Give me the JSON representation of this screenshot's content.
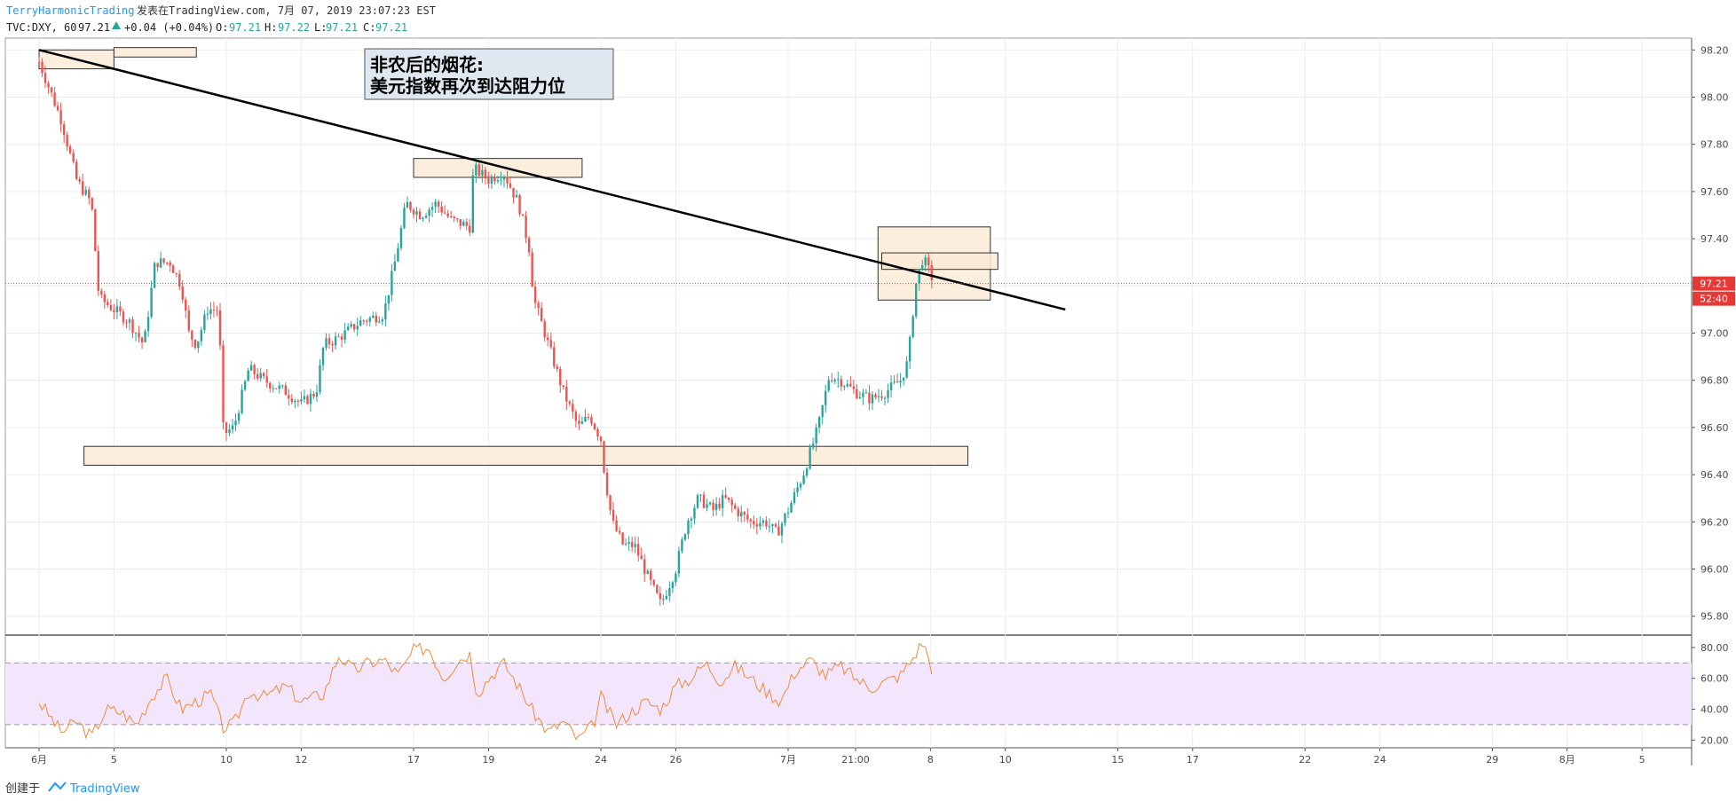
{
  "header": {
    "author": "TerryHarmonicTrading",
    "published": "发表在TradingView.com, 7月 07, 2019 23:07:23 EST",
    "symbol": "TVC:DXY, 60",
    "last": "97.21",
    "change": "+0.04 (+0.04%)",
    "o_label": "O:",
    "o_value": "97.21",
    "h_label": "H:",
    "h_value": "97.22",
    "l_label": "L:",
    "l_value": "97.21",
    "c_label": "C:",
    "c_value": "97.21"
  },
  "annotation": {
    "line1": "非农后的烟花:",
    "line2": "美元指数再次到达阻力位"
  },
  "footer": {
    "created_with": "创建于",
    "brand": "TradingView"
  },
  "colors": {
    "up": "#26a69a",
    "down": "#ef5350",
    "rsi": "#f08a3c",
    "rsi_band": "#f3e6fc",
    "zone_fill": "#fcebd6",
    "price_line": "#e53935",
    "author": "#2196f3",
    "grid": "#ececec",
    "axis_text": "#4a4a4a"
  },
  "chart_data": [
    {
      "type": "candlestick",
      "symbol": "TVC:DXY",
      "interval": "60",
      "ylim": [
        95.72,
        98.25
      ],
      "y_ticks": [
        {
          "value": 98.2,
          "label": "98.20"
        },
        {
          "value": 98.0,
          "label": "98.00"
        },
        {
          "value": 97.8,
          "label": "97.80"
        },
        {
          "value": 97.6,
          "label": "97.60"
        },
        {
          "value": 97.4,
          "label": "97.40"
        },
        {
          "value": 97.2,
          "label": "97.20"
        },
        {
          "value": 97.0,
          "label": "97.00"
        },
        {
          "value": 96.8,
          "label": "96.80"
        },
        {
          "value": 96.6,
          "label": "96.60"
        },
        {
          "value": 96.4,
          "label": "96.40"
        },
        {
          "value": 96.2,
          "label": "96.20"
        },
        {
          "value": 96.0,
          "label": "96.00"
        },
        {
          "value": 95.8,
          "label": "95.80"
        }
      ],
      "x_labels": [
        "6月",
        "5",
        "10",
        "12",
        "17",
        "19",
        "24",
        "26",
        "7月",
        "21:00",
        "8",
        "10",
        "15",
        "17",
        "22",
        "24",
        "29",
        "8月",
        "5"
      ],
      "x_label_positions": [
        0.0,
        1.0,
        2.5,
        3.5,
        5.0,
        6.0,
        7.5,
        8.5,
        10.0,
        10.9,
        11.9,
        12.9,
        14.4,
        15.4,
        16.9,
        17.9,
        19.4,
        20.4,
        21.4
      ],
      "close_path": [
        [
          0,
          98.15
        ],
        [
          0.3,
          97.9
        ],
        [
          0.5,
          97.65
        ],
        [
          0.7,
          97.55
        ],
        [
          0.8,
          97.15
        ],
        [
          1.0,
          97.1
        ],
        [
          1.2,
          97.05
        ],
        [
          1.4,
          96.95
        ],
        [
          1.55,
          97.3
        ],
        [
          1.75,
          97.3
        ],
        [
          1.9,
          97.2
        ],
        [
          2.0,
          97.0
        ],
        [
          2.1,
          96.95
        ],
        [
          2.25,
          97.1
        ],
        [
          2.4,
          97.1
        ],
        [
          2.45,
          96.6
        ],
        [
          2.5,
          96.58
        ],
        [
          2.6,
          96.6
        ],
        [
          2.8,
          96.85
        ],
        [
          3.0,
          96.8
        ],
        [
          3.3,
          96.75
        ],
        [
          3.5,
          96.7
        ],
        [
          3.7,
          96.75
        ],
        [
          3.8,
          96.95
        ],
        [
          4.0,
          96.98
        ],
        [
          4.3,
          97.05
        ],
        [
          4.6,
          97.08
        ],
        [
          4.75,
          97.3
        ],
        [
          4.9,
          97.55
        ],
        [
          5.1,
          97.5
        ],
        [
          5.3,
          97.55
        ],
        [
          5.5,
          97.48
        ],
        [
          5.75,
          97.45
        ],
        [
          5.8,
          97.7
        ],
        [
          6.0,
          97.65
        ],
        [
          6.2,
          97.68
        ],
        [
          6.4,
          97.55
        ],
        [
          6.55,
          97.35
        ],
        [
          6.6,
          97.15
        ],
        [
          6.7,
          97.05
        ],
        [
          6.9,
          96.85
        ],
        [
          7.0,
          96.75
        ],
        [
          7.2,
          96.6
        ],
        [
          7.35,
          96.65
        ],
        [
          7.5,
          96.55
        ],
        [
          7.55,
          96.4
        ],
        [
          7.65,
          96.2
        ],
        [
          7.8,
          96.1
        ],
        [
          7.95,
          96.1
        ],
        [
          8.15,
          95.95
        ],
        [
          8.3,
          95.85
        ],
        [
          8.5,
          96.0
        ],
        [
          8.65,
          96.2
        ],
        [
          8.8,
          96.3
        ],
        [
          9.0,
          96.25
        ],
        [
          9.15,
          96.3
        ],
        [
          9.3,
          96.25
        ],
        [
          9.5,
          96.2
        ],
        [
          9.7,
          96.2
        ],
        [
          9.85,
          96.15
        ],
        [
          10.0,
          96.25
        ],
        [
          10.2,
          96.4
        ],
        [
          10.4,
          96.6
        ],
        [
          10.55,
          96.82
        ],
        [
          10.7,
          96.8
        ],
        [
          10.9,
          96.75
        ],
        [
          11.1,
          96.72
        ],
        [
          11.3,
          96.75
        ],
        [
          11.5,
          96.8
        ],
        [
          11.6,
          96.88
        ],
        [
          11.7,
          97.2
        ],
        [
          11.8,
          97.32
        ],
        [
          11.9,
          97.25
        ],
        [
          11.95,
          97.21
        ]
      ],
      "trendline": {
        "from": [
          0.0,
          98.2
        ],
        "to": [
          13.7,
          97.1
        ]
      },
      "zones": [
        {
          "x": [
            0.0,
            1.0
          ],
          "y": [
            98.12,
            98.2
          ]
        },
        {
          "x": [
            1.0,
            2.1
          ],
          "y": [
            98.17,
            98.21
          ]
        },
        {
          "x": [
            5.0,
            7.25
          ],
          "y": [
            97.66,
            97.74
          ]
        },
        {
          "x": [
            0.6,
            12.4
          ],
          "y": [
            96.44,
            96.52
          ]
        },
        {
          "x": [
            11.2,
            12.7
          ],
          "y": [
            97.14,
            97.45
          ]
        },
        {
          "x": [
            11.25,
            12.8
          ],
          "y": [
            97.27,
            97.34
          ]
        }
      ],
      "last_price": {
        "value": 97.21,
        "label": "97.21",
        "countdown": "52:40"
      }
    },
    {
      "type": "line",
      "indicator": "RSI",
      "ylim": [
        15,
        88
      ],
      "y_ticks": [
        {
          "value": 80,
          "label": "80.00"
        },
        {
          "value": 60,
          "label": "60.00"
        },
        {
          "value": 40,
          "label": "40.00"
        },
        {
          "value": 20,
          "label": "20.00"
        }
      ],
      "band": [
        30,
        70
      ],
      "series": [
        {
          "values": [
            [
              0,
              45
            ],
            [
              0.3,
              25
            ],
            [
              0.5,
              32
            ],
            [
              0.7,
              22
            ],
            [
              0.9,
              40
            ],
            [
              1.1,
              38
            ],
            [
              1.3,
              30
            ],
            [
              1.5,
              48
            ],
            [
              1.7,
              60
            ],
            [
              1.9,
              40
            ],
            [
              2.1,
              45
            ],
            [
              2.3,
              50
            ],
            [
              2.45,
              28
            ],
            [
              2.6,
              30
            ],
            [
              2.8,
              52
            ],
            [
              3.0,
              48
            ],
            [
              3.3,
              55
            ],
            [
              3.5,
              45
            ],
            [
              3.8,
              50
            ],
            [
              4.0,
              75
            ],
            [
              4.2,
              65
            ],
            [
              4.4,
              70
            ],
            [
              4.6,
              72
            ],
            [
              4.8,
              62
            ],
            [
              5.0,
              78
            ],
            [
              5.2,
              80
            ],
            [
              5.4,
              60
            ],
            [
              5.6,
              72
            ],
            [
              5.75,
              76
            ],
            [
              5.85,
              50
            ],
            [
              6.0,
              60
            ],
            [
              6.2,
              70
            ],
            [
              6.4,
              55
            ],
            [
              6.6,
              38
            ],
            [
              6.8,
              25
            ],
            [
              7.0,
              32
            ],
            [
              7.2,
              20
            ],
            [
              7.4,
              30
            ],
            [
              7.5,
              48
            ],
            [
              7.7,
              30
            ],
            [
              7.9,
              38
            ],
            [
              8.1,
              45
            ],
            [
              8.3,
              40
            ],
            [
              8.5,
              55
            ],
            [
              8.7,
              60
            ],
            [
              8.9,
              70
            ],
            [
              9.1,
              58
            ],
            [
              9.3,
              68
            ],
            [
              9.5,
              60
            ],
            [
              9.7,
              52
            ],
            [
              9.9,
              45
            ],
            [
              10.1,
              65
            ],
            [
              10.3,
              72
            ],
            [
              10.5,
              62
            ],
            [
              10.7,
              68
            ],
            [
              10.9,
              60
            ],
            [
              11.1,
              54
            ],
            [
              11.3,
              58
            ],
            [
              11.5,
              62
            ],
            [
              11.65,
              72
            ],
            [
              11.8,
              84
            ],
            [
              11.95,
              62
            ]
          ]
        }
      ]
    }
  ]
}
